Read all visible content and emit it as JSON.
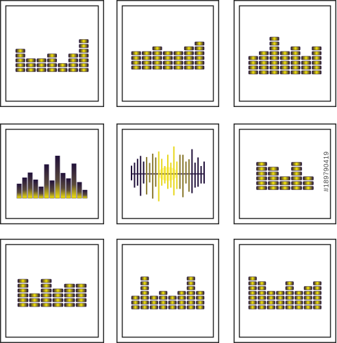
{
  "watermark": {
    "id_text": "#189790419"
  },
  "colors": {
    "frame": "#2a2a2a",
    "dark": "#20103a",
    "light": "#f5e60a"
  },
  "icons": [
    {
      "name": "equalizer-segmented-icon-1",
      "style": "segmented",
      "levels": [
        5,
        3,
        3,
        4,
        2,
        4,
        7
      ]
    },
    {
      "name": "equalizer-segmented-icon-2",
      "style": "segmented",
      "levels": [
        4,
        4,
        5,
        4,
        4,
        5,
        6
      ]
    },
    {
      "name": "equalizer-segmented-icon-3",
      "style": "segmented",
      "levels": [
        4,
        5,
        8,
        5,
        6,
        4,
        6
      ]
    },
    {
      "name": "equalizer-solid-bars-icon",
      "style": "solid",
      "levels": [
        3.5,
        5,
        6.2,
        4.5,
        2.8,
        8.2,
        4.3,
        10.3,
        6.1,
        4.8,
        8.4,
        3.9,
        2.0
      ]
    },
    {
      "name": "sound-wave-icon",
      "style": "wave",
      "levels": [
        0.3,
        0.5,
        0.55,
        0.8,
        0.45,
        0.75,
        0.4,
        0.9,
        0.6,
        1.0,
        0.55,
        0.35,
        0.7,
        0.5,
        1.0,
        0.55,
        0.7,
        0.85,
        0.45,
        0.65,
        0.9,
        0.5,
        0.6,
        0.35,
        0.45
      ]
    },
    {
      "name": "equalizer-segmented-icon-4",
      "style": "segmented",
      "levels": [
        6,
        5,
        3,
        6,
        3
      ]
    },
    {
      "name": "equalizer-segmented-icon-5",
      "style": "segmented",
      "levels": [
        6,
        3,
        6,
        4,
        5,
        5
      ]
    },
    {
      "name": "equalizer-segmented-icon-6",
      "style": "segmented",
      "levels": [
        3,
        7,
        3,
        4,
        3,
        4,
        7,
        4
      ]
    },
    {
      "name": "equalizer-segmented-icon-7",
      "style": "segmented",
      "levels": [
        7,
        6,
        4,
        4,
        6,
        4,
        5,
        6
      ]
    }
  ]
}
